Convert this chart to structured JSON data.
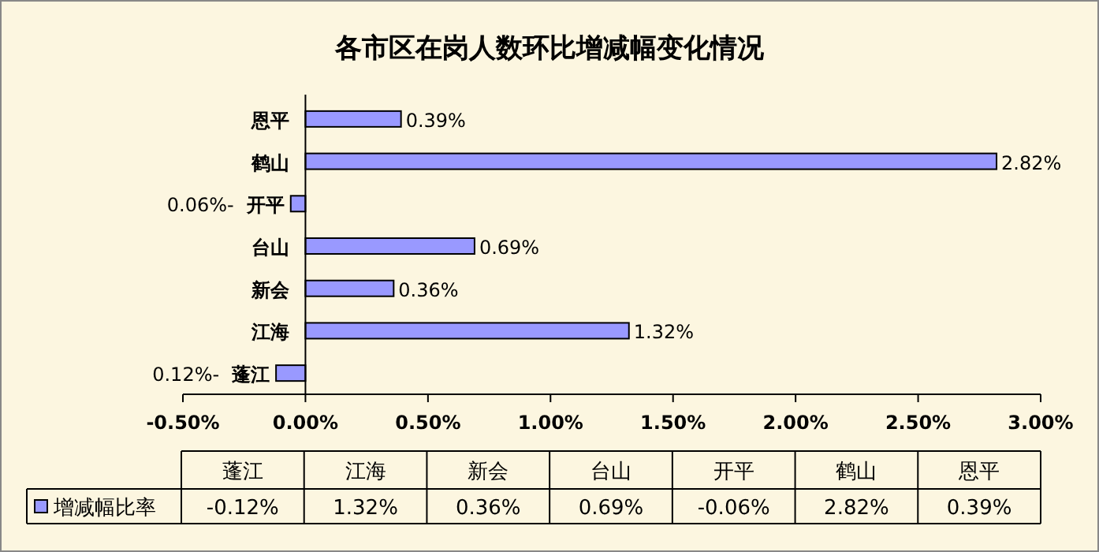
{
  "chart_data": {
    "type": "bar",
    "orientation": "horizontal",
    "title": "各市区在岗人数环比增减幅变化情况",
    "categories": [
      "恩平",
      "鹤山",
      "开平",
      "台山",
      "新会",
      "江海",
      "蓬江"
    ],
    "series": [
      {
        "name": "增减幅比率",
        "color": "#9999ff",
        "values": [
          0.39,
          2.82,
          -0.06,
          0.69,
          0.36,
          1.32,
          -0.12
        ],
        "value_labels": [
          "0.39%",
          "2.82%",
          null,
          "0.69%",
          "0.36%",
          "1.32%",
          null
        ]
      }
    ],
    "xlim": [
      -0.5,
      3
    ],
    "xticks": [
      {
        "value": -0.5,
        "label": "-0.50%"
      },
      {
        "value": 0,
        "label": "0.00%"
      },
      {
        "value": 0.5,
        "label": "0.50%"
      },
      {
        "value": 1,
        "label": "1.00%"
      },
      {
        "value": 1.5,
        "label": "1.50%"
      },
      {
        "value": 2,
        "label": "2.00%"
      },
      {
        "value": 2.5,
        "label": "2.50%"
      },
      {
        "value": 3,
        "label": "3.00%"
      }
    ],
    "grid": false,
    "legend": "bottom",
    "annotations": [
      "-0.12%",
      "1.32%",
      "0.36%",
      "0.69%",
      "-0.06%",
      "2.82%",
      "0.39%",
      {
        "text": "0.06%-",
        "x": -0.06,
        "y": "开平"
      },
      {
        "text": "0.12%-",
        "x": -0.12,
        "y": "蓬江"
      }
    ]
  }
}
